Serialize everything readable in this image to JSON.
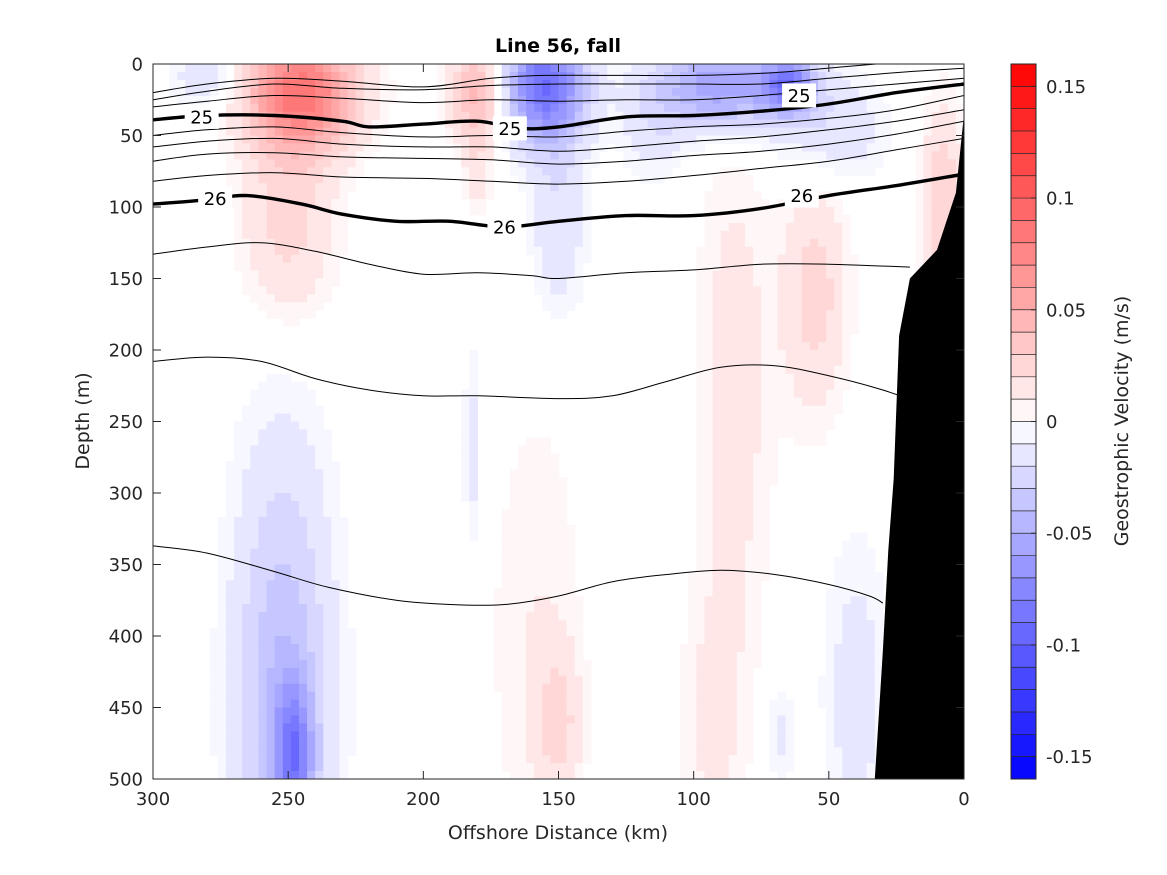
{
  "chart_data": {
    "type": "heatmap",
    "title": "Line 56, fall",
    "xlabel": "Offshore Distance (km)",
    "ylabel": "Depth (m)",
    "xlim": [
      300,
      0
    ],
    "ylim": [
      0,
      500
    ],
    "x_reversed": true,
    "y_reversed": true,
    "xticks": [
      "300",
      "250",
      "200",
      "150",
      "100",
      "50",
      "0"
    ],
    "xtick_values": [
      300,
      250,
      200,
      150,
      100,
      50,
      0
    ],
    "yticks": [
      "0",
      "50",
      "100",
      "150",
      "200",
      "250",
      "300",
      "350",
      "400",
      "450",
      "500"
    ],
    "ytick_values": [
      0,
      50,
      100,
      150,
      200,
      250,
      300,
      350,
      400,
      450,
      500
    ],
    "colorbar": {
      "label": "Geostrophic Velocity (m/s)",
      "range": [
        -0.16,
        0.16
      ],
      "levels": 32,
      "ticks": [
        "0.15",
        "0.1",
        "0.05",
        "0",
        "-0.05",
        "-0.1",
        "-0.15"
      ],
      "tick_values": [
        0.15,
        0.1,
        0.05,
        0,
        -0.05,
        -0.1,
        -0.15
      ],
      "colors": {
        "negative": "#0000ff",
        "zero": "#ffffff",
        "positive": "#ff0000"
      }
    },
    "velocity_features": [
      {
        "x": 245,
        "y": 20,
        "rx": 20,
        "ry": 40,
        "v": 0.085
      },
      {
        "x": 250,
        "y": 110,
        "rx": 17,
        "ry": 70,
        "v": 0.025
      },
      {
        "x": 180,
        "y": 20,
        "rx": 10,
        "ry": 35,
        "v": 0.045
      },
      {
        "x": 180,
        "y": 75,
        "rx": 5,
        "ry": 30,
        "v": 0.015
      },
      {
        "x": 155,
        "y": 15,
        "rx": 15,
        "ry": 40,
        "v": -0.09
      },
      {
        "x": 150,
        "y": 110,
        "rx": 10,
        "ry": 65,
        "v": -0.02
      },
      {
        "x": 90,
        "y": 15,
        "rx": 22,
        "ry": 30,
        "v": -0.06
      },
      {
        "x": 65,
        "y": 15,
        "rx": 10,
        "ry": 20,
        "v": -0.07
      },
      {
        "x": 50,
        "y": 45,
        "rx": 20,
        "ry": 40,
        "v": -0.02
      },
      {
        "x": 280,
        "y": 10,
        "rx": 12,
        "ry": 20,
        "v": -0.02
      },
      {
        "x": 115,
        "y": 40,
        "rx": 12,
        "ry": 40,
        "v": -0.015
      },
      {
        "x": 85,
        "y": 230,
        "rx": 14,
        "ry": 190,
        "v": 0.015
      },
      {
        "x": 55,
        "y": 160,
        "rx": 12,
        "ry": 85,
        "v": 0.025
      },
      {
        "x": 8,
        "y": 100,
        "rx": 8,
        "ry": 70,
        "v": 0.03
      },
      {
        "x": 252,
        "y": 440,
        "rx": 18,
        "ry": 170,
        "v": -0.04
      },
      {
        "x": 248,
        "y": 485,
        "rx": 7,
        "ry": 50,
        "v": -0.06
      },
      {
        "x": 158,
        "y": 400,
        "rx": 18,
        "ry": 170,
        "v": 0.01
      },
      {
        "x": 150,
        "y": 460,
        "rx": 8,
        "ry": 50,
        "v": 0.02
      },
      {
        "x": 182,
        "y": 270,
        "rx": 3,
        "ry": 70,
        "v": -0.015
      },
      {
        "x": 93,
        "y": 460,
        "rx": 12,
        "ry": 90,
        "v": 0.012
      },
      {
        "x": 40,
        "y": 440,
        "rx": 12,
        "ry": 110,
        "v": -0.015
      },
      {
        "x": 68,
        "y": 470,
        "rx": 5,
        "ry": 40,
        "v": -0.012
      }
    ],
    "density_contours": [
      {
        "label": "",
        "bold": false,
        "points": [
          [
            300,
            20
          ],
          [
            280,
            14
          ],
          [
            255,
            10
          ],
          [
            230,
            12
          ],
          [
            200,
            16
          ],
          [
            175,
            10
          ],
          [
            155,
            8
          ],
          [
            125,
            8
          ],
          [
            100,
            8
          ],
          [
            70,
            6
          ],
          [
            45,
            2
          ],
          [
            20,
            -2
          ]
        ]
      },
      {
        "label": "",
        "bold": false,
        "points": [
          [
            300,
            25
          ],
          [
            280,
            19
          ],
          [
            255,
            14
          ],
          [
            230,
            17
          ],
          [
            200,
            18
          ],
          [
            175,
            15
          ],
          [
            150,
            14
          ],
          [
            125,
            14
          ],
          [
            100,
            14
          ],
          [
            75,
            14
          ],
          [
            50,
            10
          ],
          [
            25,
            6
          ],
          [
            0,
            3
          ]
        ]
      },
      {
        "label": "",
        "bold": false,
        "points": [
          [
            300,
            30
          ],
          [
            280,
            26
          ],
          [
            255,
            22
          ],
          [
            230,
            24
          ],
          [
            200,
            27
          ],
          [
            175,
            25
          ],
          [
            150,
            26
          ],
          [
            125,
            25
          ],
          [
            100,
            25
          ],
          [
            75,
            22
          ],
          [
            50,
            18
          ],
          [
            25,
            14
          ],
          [
            0,
            10
          ]
        ]
      },
      {
        "label": "25",
        "bold": true,
        "label_positions": [
          [
            282,
            37
          ],
          [
            168,
            45
          ],
          [
            61,
            22
          ]
        ],
        "points": [
          [
            300,
            39
          ],
          [
            280,
            36
          ],
          [
            255,
            36
          ],
          [
            230,
            40
          ],
          [
            220,
            44
          ],
          [
            200,
            42
          ],
          [
            180,
            40
          ],
          [
            165,
            45
          ],
          [
            150,
            44
          ],
          [
            125,
            37
          ],
          [
            100,
            36
          ],
          [
            75,
            33
          ],
          [
            50,
            28
          ],
          [
            25,
            20
          ],
          [
            0,
            14
          ]
        ]
      },
      {
        "label": "",
        "bold": false,
        "points": [
          [
            300,
            50
          ],
          [
            280,
            46
          ],
          [
            255,
            44
          ],
          [
            230,
            48
          ],
          [
            200,
            51
          ],
          [
            175,
            50
          ],
          [
            150,
            51
          ],
          [
            125,
            47
          ],
          [
            100,
            44
          ],
          [
            75,
            42
          ],
          [
            50,
            38
          ],
          [
            25,
            32
          ],
          [
            0,
            22
          ]
        ]
      },
      {
        "label": "",
        "bold": false,
        "points": [
          [
            300,
            58
          ],
          [
            280,
            54
          ],
          [
            255,
            52
          ],
          [
            230,
            56
          ],
          [
            200,
            58
          ],
          [
            175,
            58
          ],
          [
            150,
            61
          ],
          [
            125,
            58
          ],
          [
            100,
            54
          ],
          [
            75,
            51
          ],
          [
            50,
            46
          ],
          [
            25,
            40
          ],
          [
            0,
            32
          ]
        ]
      },
      {
        "label": "",
        "bold": false,
        "points": [
          [
            300,
            68
          ],
          [
            280,
            63
          ],
          [
            255,
            62
          ],
          [
            230,
            65
          ],
          [
            200,
            66
          ],
          [
            175,
            67
          ],
          [
            150,
            70
          ],
          [
            125,
            68
          ],
          [
            100,
            64
          ],
          [
            75,
            61
          ],
          [
            50,
            56
          ],
          [
            25,
            49
          ],
          [
            0,
            40
          ]
        ]
      },
      {
        "label": "",
        "bold": false,
        "points": [
          [
            300,
            82
          ],
          [
            280,
            78
          ],
          [
            255,
            76
          ],
          [
            230,
            79
          ],
          [
            200,
            80
          ],
          [
            175,
            82
          ],
          [
            150,
            84
          ],
          [
            125,
            82
          ],
          [
            100,
            78
          ],
          [
            75,
            73
          ],
          [
            50,
            68
          ],
          [
            25,
            60
          ],
          [
            0,
            52
          ]
        ]
      },
      {
        "label": "26",
        "bold": true,
        "label_positions": [
          [
            277,
            94
          ],
          [
            170,
            114
          ],
          [
            60,
            92
          ]
        ],
        "points": [
          [
            300,
            98
          ],
          [
            280,
            95
          ],
          [
            265,
            92
          ],
          [
            245,
            98
          ],
          [
            230,
            105
          ],
          [
            210,
            110
          ],
          [
            190,
            110
          ],
          [
            170,
            114
          ],
          [
            150,
            110
          ],
          [
            125,
            106
          ],
          [
            100,
            106
          ],
          [
            75,
            101
          ],
          [
            50,
            92
          ],
          [
            25,
            85
          ],
          [
            0,
            77
          ]
        ]
      },
      {
        "label": "",
        "bold": false,
        "points": [
          [
            300,
            133
          ],
          [
            280,
            128
          ],
          [
            260,
            125
          ],
          [
            240,
            131
          ],
          [
            220,
            140
          ],
          [
            200,
            147
          ],
          [
            180,
            146
          ],
          [
            160,
            148
          ],
          [
            150,
            150
          ],
          [
            125,
            146
          ],
          [
            100,
            144
          ],
          [
            75,
            140
          ],
          [
            50,
            140
          ],
          [
            20,
            142
          ]
        ]
      },
      {
        "label": "",
        "bold": false,
        "points": [
          [
            300,
            208
          ],
          [
            280,
            205
          ],
          [
            260,
            208
          ],
          [
            240,
            220
          ],
          [
            220,
            228
          ],
          [
            200,
            232
          ],
          [
            180,
            232
          ],
          [
            150,
            234
          ],
          [
            130,
            232
          ],
          [
            110,
            222
          ],
          [
            90,
            212
          ],
          [
            70,
            211
          ],
          [
            50,
            218
          ],
          [
            30,
            228
          ],
          [
            12,
            240
          ]
        ]
      },
      {
        "label": "",
        "bold": false,
        "points": [
          [
            300,
            337
          ],
          [
            280,
            342
          ],
          [
            255,
            355
          ],
          [
            235,
            366
          ],
          [
            210,
            375
          ],
          [
            190,
            378
          ],
          [
            170,
            378
          ],
          [
            150,
            372
          ],
          [
            130,
            362
          ],
          [
            110,
            357
          ],
          [
            90,
            354
          ],
          [
            70,
            357
          ],
          [
            50,
            364
          ],
          [
            35,
            372
          ],
          [
            30,
            377
          ]
        ]
      }
    ],
    "bathymetry_polygon": [
      [
        0,
        35
      ],
      [
        0,
        500
      ],
      [
        33,
        500
      ],
      [
        30,
        410
      ],
      [
        28,
        340
      ],
      [
        26,
        290
      ],
      [
        24,
        190
      ],
      [
        20,
        150
      ],
      [
        10,
        130
      ],
      [
        3,
        90
      ]
    ]
  }
}
